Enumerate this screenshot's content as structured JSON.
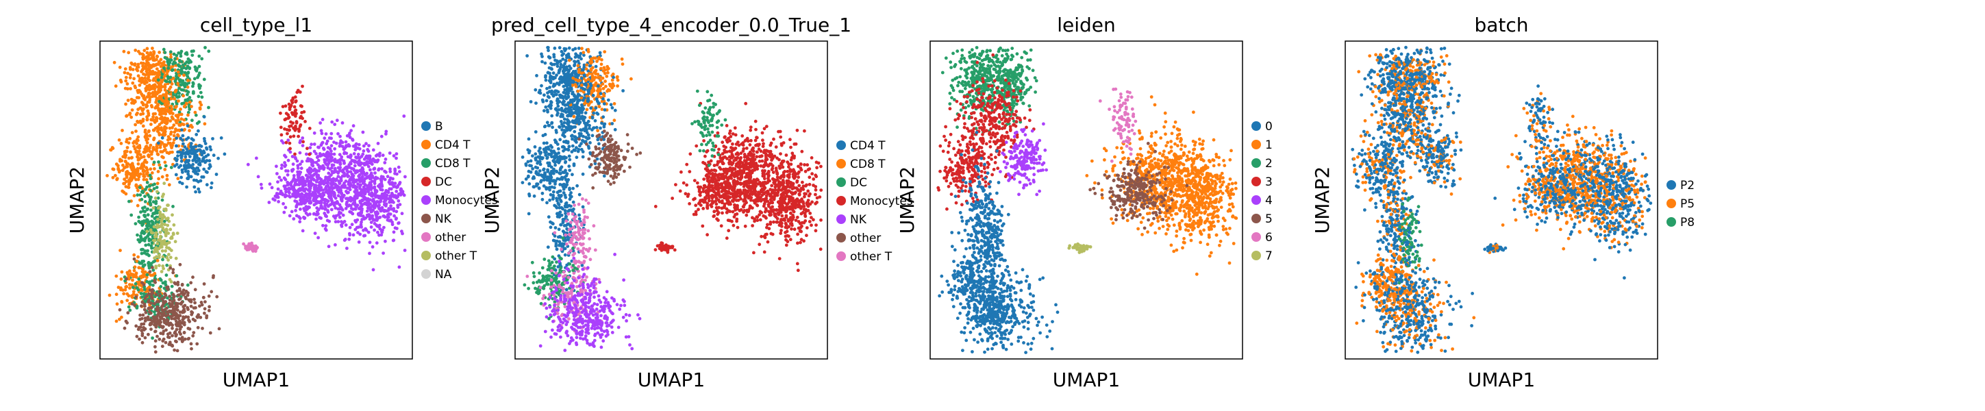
{
  "chart_data": [
    {
      "type": "scatter",
      "title": "cell_type_l1",
      "xlabel": "UMAP1",
      "ylabel": "UMAP2",
      "grid": false,
      "legend_position": "right",
      "categories": [
        "B",
        "CD4 T",
        "CD8 T",
        "DC",
        "Monocytes",
        "NK",
        "other",
        "other T",
        "NA"
      ],
      "colors": [
        "#1f77b4",
        "#ff7f0e",
        "#279e68",
        "#d62728",
        "#aa40fc",
        "#8c564b",
        "#e377c2",
        "#b5bd61",
        "#d3d3d3"
      ]
    },
    {
      "type": "scatter",
      "title": "pred_cell_type_4_encoder_0.0_True_1",
      "xlabel": "UMAP1",
      "ylabel": "UMAP2",
      "grid": false,
      "legend_position": "right",
      "categories": [
        "CD4 T",
        "CD8 T",
        "DC",
        "Monocytes",
        "NK",
        "other",
        "other T"
      ],
      "colors": [
        "#1f77b4",
        "#ff7f0e",
        "#279e68",
        "#d62728",
        "#aa40fc",
        "#8c564b",
        "#e377c2"
      ]
    },
    {
      "type": "scatter",
      "title": "leiden",
      "xlabel": "UMAP1",
      "ylabel": "UMAP2",
      "grid": false,
      "legend_position": "right",
      "categories": [
        "0",
        "1",
        "2",
        "3",
        "4",
        "5",
        "6",
        "7"
      ],
      "colors": [
        "#1f77b4",
        "#ff7f0e",
        "#279e68",
        "#d62728",
        "#aa40fc",
        "#8c564b",
        "#e377c2",
        "#b5bd61"
      ]
    },
    {
      "type": "scatter",
      "title": "batch",
      "xlabel": "UMAP1",
      "ylabel": "UMAP2",
      "grid": false,
      "legend_position": "right",
      "categories": [
        "P2",
        "P5",
        "P8"
      ],
      "colors": [
        "#1f77b4",
        "#ff7f0e",
        "#279e68"
      ]
    }
  ]
}
